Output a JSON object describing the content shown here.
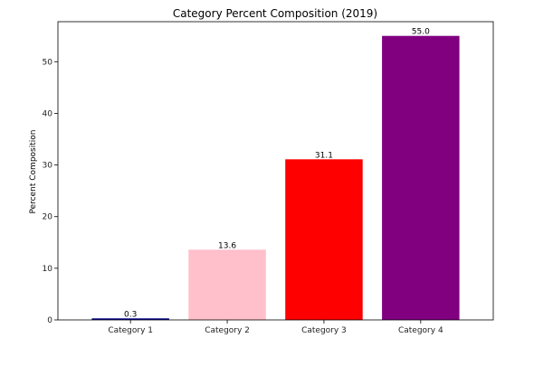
{
  "chart_data": {
    "type": "bar",
    "title": "Category Percent Composition (2019)",
    "xlabel": "",
    "ylabel": "Percent Composition",
    "categories": [
      "Category 1",
      "Category 2",
      "Category 3",
      "Category 4"
    ],
    "values": [
      0.3,
      13.6,
      31.1,
      55.0
    ],
    "value_labels": [
      "0.3",
      "13.6",
      "31.1",
      "55.0"
    ],
    "colors": [
      "#00008b",
      "#ffc0cb",
      "#ff0000",
      "#800080"
    ],
    "ylim": [
      0,
      57.75
    ],
    "yticks": [
      0,
      10,
      20,
      30,
      40,
      50
    ],
    "ytick_labels": [
      "0",
      "10",
      "20",
      "30",
      "40",
      "50"
    ],
    "grid": false,
    "legend": "none"
  }
}
